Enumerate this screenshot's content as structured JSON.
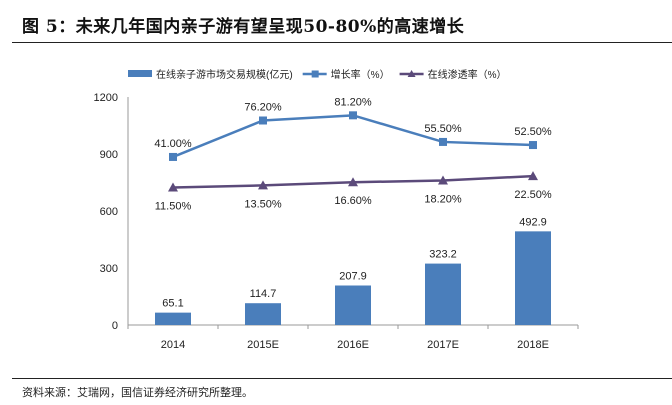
{
  "title": "图 5：未来几年国内亲子游有望呈现50-80%的高速增长",
  "source": "资料来源：艾瑞网，国信证券经济研究所整理。",
  "colors": {
    "bar": "#4a7ebb",
    "growth": "#4a7ebb",
    "penetration": "#5b4a7a"
  },
  "chart_data": {
    "type": "bar+line",
    "categories": [
      "2014",
      "2015E",
      "2016E",
      "2017E",
      "2018E"
    ],
    "series": [
      {
        "name": "在线亲子游市场交易规模(亿元)",
        "kind": "bar",
        "axis": "primary",
        "values": [
          65.1,
          114.7,
          207.9,
          323.2,
          492.9
        ],
        "labels": [
          "65.1",
          "114.7",
          "207.9",
          "323.2",
          "492.9"
        ]
      },
      {
        "name": "增长率（%）",
        "kind": "line",
        "marker": "square",
        "axis": "secondary",
        "values": [
          41.0,
          76.2,
          81.2,
          55.5,
          52.5
        ],
        "labels": [
          "41.00%",
          "76.20%",
          "81.20%",
          "55.50%",
          "52.50%"
        ]
      },
      {
        "name": "在线渗透率（%）",
        "kind": "line",
        "marker": "triangle",
        "axis": "secondary",
        "values": [
          11.5,
          13.5,
          16.6,
          18.2,
          22.5
        ],
        "labels": [
          "11.50%",
          "13.50%",
          "16.60%",
          "18.20%",
          "22.50%"
        ]
      }
    ],
    "ylim": [
      0,
      1200
    ],
    "yticks": [
      "0",
      "300",
      "600",
      "900",
      "1200"
    ],
    "ytick_values": [
      0,
      300,
      600,
      900,
      1200
    ],
    "y2lim": [
      -121.3,
      98.9
    ],
    "legend": "top",
    "grid": false
  }
}
